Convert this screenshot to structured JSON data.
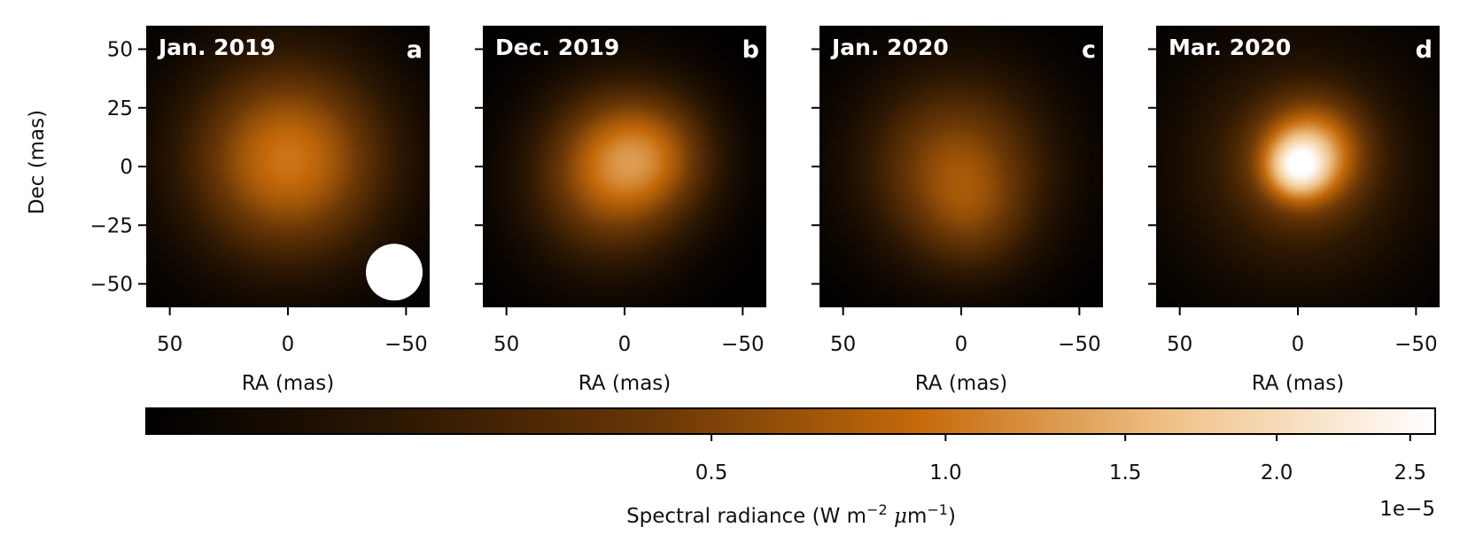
{
  "chart_data": {
    "type": "heatmap",
    "panels": [
      {
        "epoch": "Jan. 2019",
        "letter": "a",
        "blobs": [
          {
            "ra": 0,
            "dec": 3,
            "sigma": 22,
            "amp": 1.02
          }
        ],
        "beam": {
          "ra": -45,
          "dec": -45,
          "radius": 12
        }
      },
      {
        "epoch": "Dec. 2019",
        "letter": "b",
        "blobs": [
          {
            "ra": 2,
            "dec": 2,
            "sigma": 17,
            "amp": 0.85
          },
          {
            "ra": -12,
            "dec": 5,
            "sigma": 14,
            "amp": 0.45
          },
          {
            "ra": 8,
            "dec": -12,
            "sigma": 18,
            "amp": 0.25
          }
        ]
      },
      {
        "epoch": "Jan. 2020",
        "letter": "c",
        "blobs": [
          {
            "ra": 2,
            "dec": 0,
            "sigma": 20,
            "amp": 0.62
          },
          {
            "ra": -4,
            "dec": -20,
            "sigma": 14,
            "amp": 0.28
          }
        ]
      },
      {
        "epoch": "Mar. 2020",
        "letter": "d",
        "blobs": [
          {
            "ra": 0,
            "dec": 0,
            "sigma": 8,
            "amp": 1.45
          },
          {
            "ra": -4,
            "dec": 4,
            "sigma": 13,
            "amp": 0.95
          },
          {
            "ra": -8,
            "dec": 8,
            "sigma": 12,
            "amp": 0.4
          },
          {
            "ra": 0,
            "dec": 0,
            "sigma": 24,
            "amp": 0.3
          }
        ]
      }
    ],
    "xlabel": "RA (mas)",
    "ylabel": "Dec (mas)",
    "xlim": [
      60,
      -60
    ],
    "ylim": [
      -60,
      60
    ],
    "xticks": [
      50,
      0,
      -50
    ],
    "xtick_labels": [
      "50",
      "0",
      "−50"
    ],
    "yticks": [
      50,
      25,
      0,
      -25,
      -50
    ],
    "ytick_labels": [
      "50",
      "25",
      "0",
      "−25",
      "−50"
    ],
    "colorbar": {
      "label_prefix": "Spectral radiance (W m",
      "label_exp1": "−2",
      "label_mid": " ",
      "label_mu": "μ",
      "label_m": "m",
      "label_exp2": "−1",
      "label_suffix": ")",
      "offset_text": "1e−5",
      "scale": "sqrt",
      "range": [
        0,
        2.6
      ],
      "ticks": [
        0.5,
        1.0,
        1.5,
        2.0,
        2.5
      ],
      "tick_labels": [
        "0.5",
        "1.0",
        "1.5",
        "2.0",
        "2.5"
      ],
      "colors": [
        "#000000",
        "#2e1802",
        "#6b3806",
        "#c56a0a",
        "#f0c48a",
        "#ffffff"
      ]
    }
  }
}
